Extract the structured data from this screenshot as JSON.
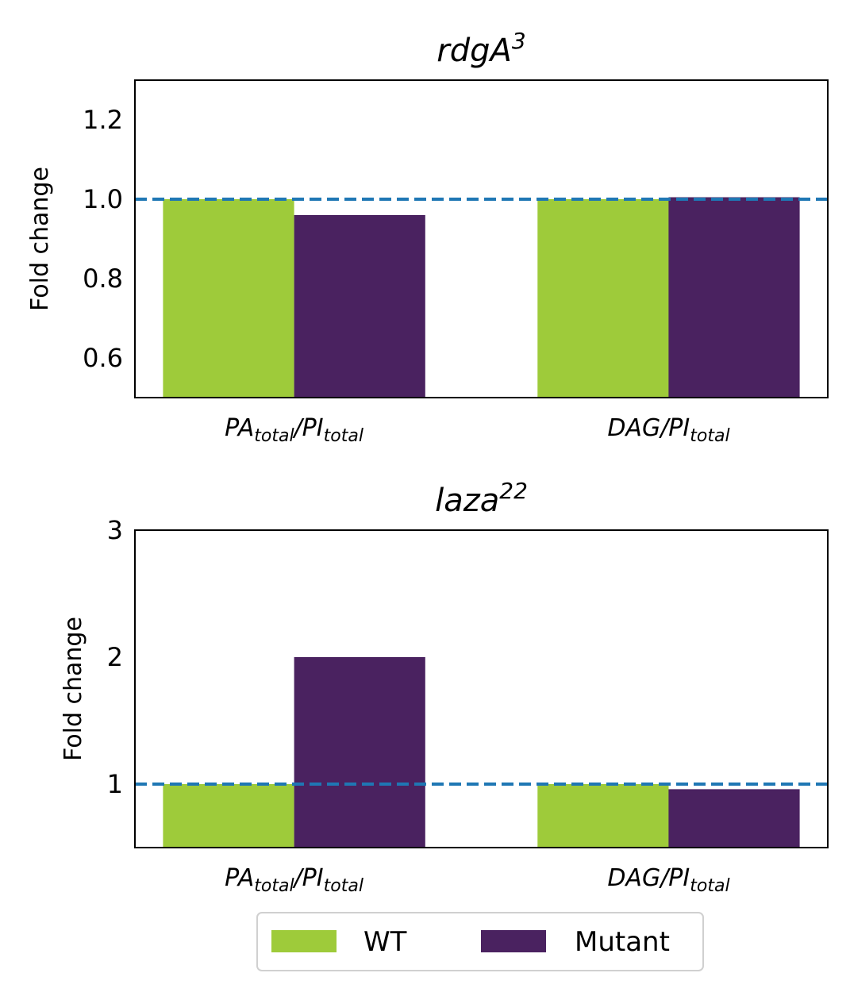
{
  "chart_data": [
    {
      "type": "bar",
      "title": "rdgA",
      "title_sup": "3",
      "ylabel": "Fold change",
      "ylim": [
        0.5,
        1.3
      ],
      "yticks": [
        "0.6",
        "0.8",
        "1.0",
        "1.2"
      ],
      "yticks_values": [
        0.6,
        0.8,
        1.0,
        1.2
      ],
      "reference_line": 1.0,
      "categories": [
        {
          "main": "PA",
          "main_sub": "total",
          "sep": "/PI",
          "sep_sub": "total"
        },
        {
          "main": "DAG",
          "main_sub": "",
          "sep": "/PI",
          "sep_sub": "total"
        }
      ],
      "series": [
        {
          "name": "WT",
          "values": [
            1.0,
            1.0
          ]
        },
        {
          "name": "Mutant",
          "values": [
            0.96,
            1.005
          ]
        }
      ]
    },
    {
      "type": "bar",
      "title": "laza",
      "title_sup": "22",
      "ylabel": "Fold change",
      "ylim": [
        0.5,
        3.0
      ],
      "yticks": [
        "1",
        "2",
        "3"
      ],
      "yticks_values": [
        1,
        2,
        3
      ],
      "reference_line": 1.0,
      "categories": [
        {
          "main": "PA",
          "main_sub": "total",
          "sep": "/PI",
          "sep_sub": "total"
        },
        {
          "main": "DAG",
          "main_sub": "",
          "sep": "/PI",
          "sep_sub": "total"
        }
      ],
      "series": [
        {
          "name": "WT",
          "values": [
            1.0,
            1.0
          ]
        },
        {
          "name": "Mutant",
          "values": [
            2.0,
            0.96
          ]
        }
      ]
    }
  ],
  "legend": {
    "placement": "bottom-center",
    "items": [
      {
        "label": "WT",
        "color": "#9ecb3a"
      },
      {
        "label": "Mutant",
        "color": "#4a2260"
      }
    ]
  },
  "colors": {
    "wt": "#9ecb3a",
    "mutant": "#4a2260",
    "reference_line": "#1f77b4"
  }
}
